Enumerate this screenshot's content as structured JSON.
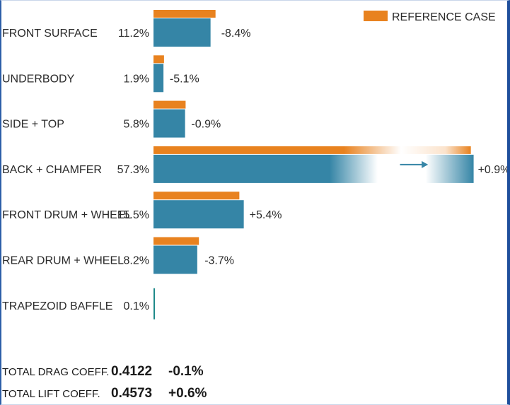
{
  "chart_data": {
    "type": "bar",
    "legend": {
      "label": "REFERENCE CASE",
      "color": "#e8821f",
      "placement": "top-right"
    },
    "colors": {
      "reference": "#e8821f",
      "current": "#3585a6",
      "baseline": "#1f8a8a"
    },
    "xlim": [
      0,
      60
    ],
    "rows": [
      {
        "category": "FRONT SURFACE",
        "share": "11.2%",
        "reference": 11.2,
        "current": 10.3,
        "change": "-8.4%"
      },
      {
        "category": "UNDERBODY",
        "share": "1.9%",
        "reference": 1.9,
        "current": 1.8,
        "change": "-5.1%"
      },
      {
        "category": "SIDE + TOP",
        "share": "5.8%",
        "reference": 5.8,
        "current": 5.7,
        "change": "-0.9%"
      },
      {
        "category": "BACK + CHAMFER",
        "share": "57.3%",
        "reference": 57.3,
        "current": 57.8,
        "change": "+0.9%",
        "highlight": true
      },
      {
        "category": "FRONT DRUM + WHEEL",
        "share": "15.5%",
        "reference": 15.5,
        "current": 16.3,
        "change": "+5.4%"
      },
      {
        "category": "REAR DRUM + WHEEL",
        "share": "8.2%",
        "reference": 8.2,
        "current": 7.9,
        "change": "-3.7%"
      },
      {
        "category": "TRAPEZOID BAFFLE",
        "share": "0.1%",
        "reference": 0.1,
        "current": 0.1,
        "change": ""
      }
    ],
    "totals": [
      {
        "label": "TOTAL DRAG COEFF.",
        "value": "0.4122",
        "change": "-0.1%"
      },
      {
        "label": "TOTAL LIFT COEFF.",
        "value": "0.4573",
        "change": "+0.6%"
      }
    ]
  }
}
